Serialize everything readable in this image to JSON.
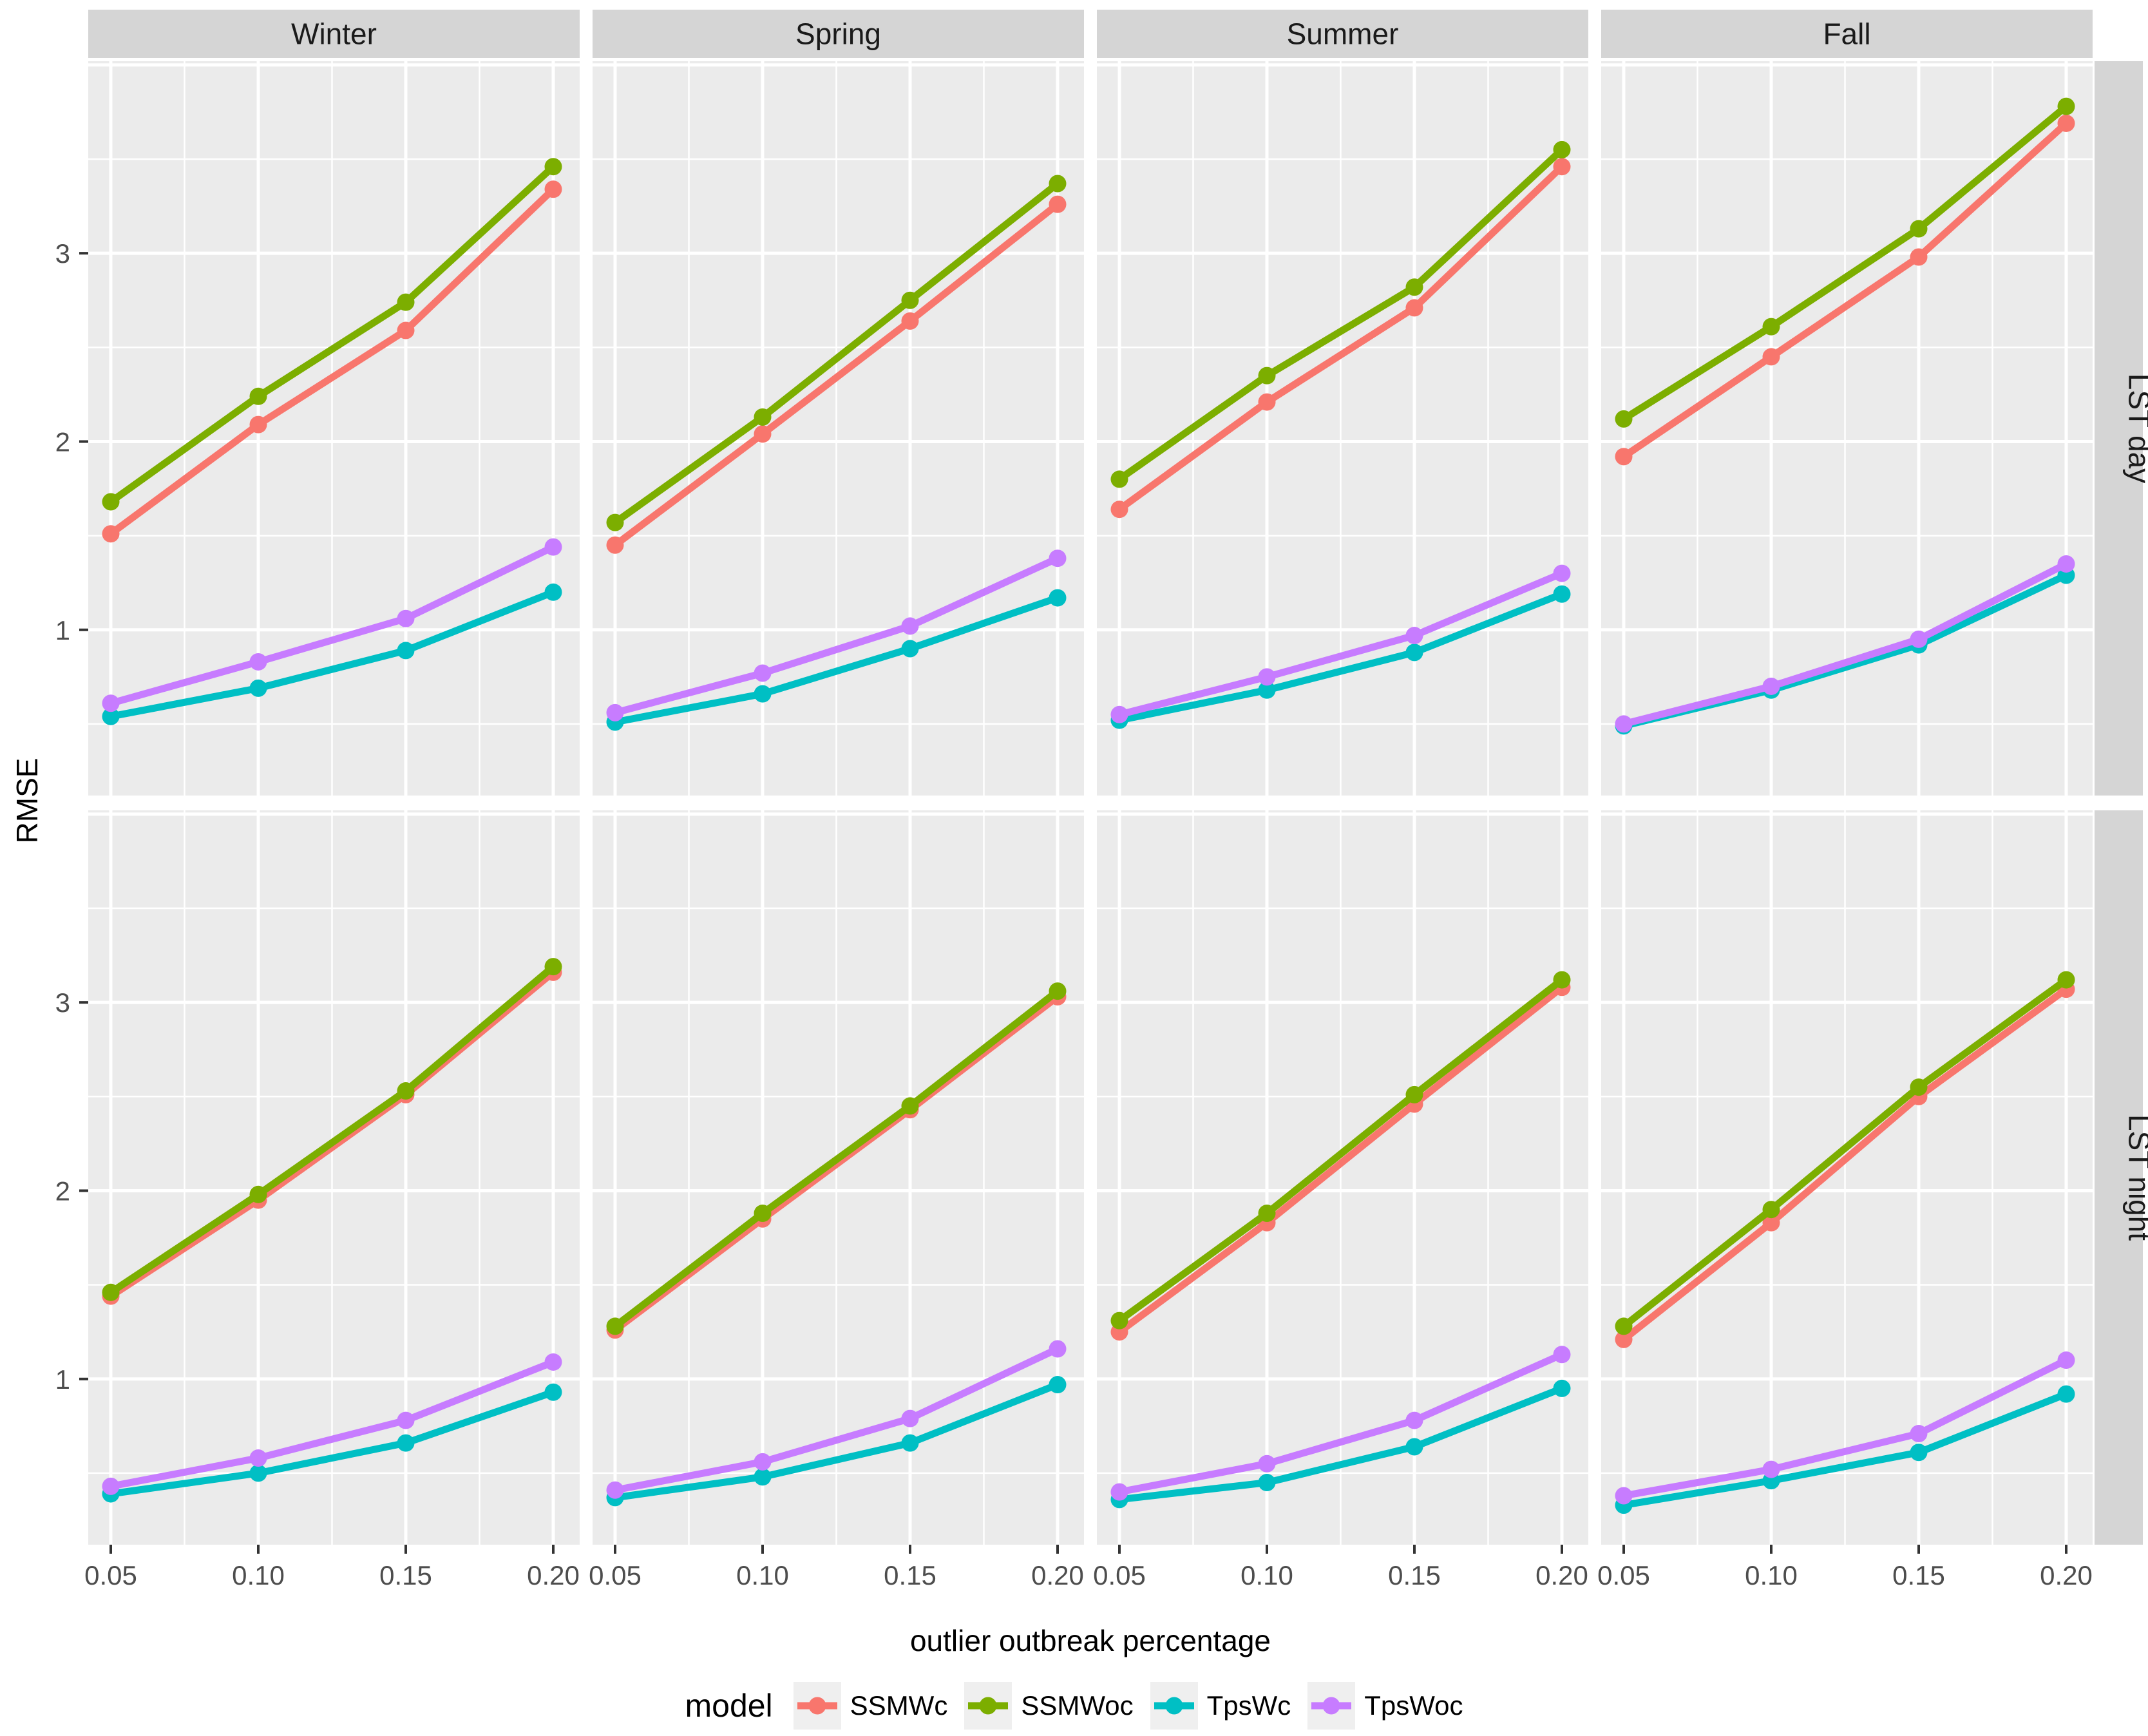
{
  "figure": {
    "y_axis_title": "RMSE",
    "x_axis_title": "outlier outbreak percentage",
    "legend_title": "model"
  },
  "chart_data": {
    "type": "line",
    "x": [
      0.05,
      0.1,
      0.15,
      0.2
    ],
    "x_tick_labels": [
      "0.05",
      "0.10",
      "0.15",
      "0.20"
    ],
    "y_ticks": [
      1,
      2,
      3
    ],
    "y_tick_labels": [
      "1",
      "2",
      "3"
    ],
    "ylim": [
      0.12,
      4.02
    ],
    "grid": "on",
    "legend_position": "bottom",
    "facet_cols": [
      "Winter",
      "Spring",
      "Summer",
      "Fall"
    ],
    "facet_rows": [
      "LST day",
      "LST night"
    ],
    "series_order": [
      "SSMWc",
      "SSMWoc",
      "TpsWc",
      "TpsWoc"
    ],
    "series_colors": {
      "SSMWc": "#F8766D",
      "SSMWoc": "#7CAE00",
      "TpsWc": "#00BFC4",
      "TpsWoc": "#C77CFF"
    },
    "panels": {
      "LST day": {
        "Winter": {
          "SSMWc": [
            1.51,
            2.09,
            2.59,
            3.34
          ],
          "SSMWoc": [
            1.68,
            2.24,
            2.74,
            3.46
          ],
          "TpsWc": [
            0.54,
            0.69,
            0.89,
            1.2
          ],
          "TpsWoc": [
            0.61,
            0.83,
            1.06,
            1.44
          ]
        },
        "Spring": {
          "SSMWc": [
            1.45,
            2.04,
            2.64,
            3.26
          ],
          "SSMWoc": [
            1.57,
            2.13,
            2.75,
            3.37
          ],
          "TpsWc": [
            0.51,
            0.66,
            0.9,
            1.17
          ],
          "TpsWoc": [
            0.56,
            0.77,
            1.02,
            1.38
          ]
        },
        "Summer": {
          "SSMWc": [
            1.64,
            2.21,
            2.71,
            3.46
          ],
          "SSMWoc": [
            1.8,
            2.35,
            2.82,
            3.55
          ],
          "TpsWc": [
            0.52,
            0.68,
            0.88,
            1.19
          ],
          "TpsWoc": [
            0.55,
            0.75,
            0.97,
            1.3
          ]
        },
        "Fall": {
          "SSMWc": [
            1.92,
            2.45,
            2.98,
            3.69
          ],
          "SSMWoc": [
            2.12,
            2.61,
            3.13,
            3.78
          ],
          "TpsWc": [
            0.49,
            0.68,
            0.92,
            1.29
          ],
          "TpsWoc": [
            0.5,
            0.7,
            0.95,
            1.35
          ]
        }
      },
      "LST night": {
        "Winter": {
          "SSMWc": [
            1.44,
            1.95,
            2.51,
            3.16
          ],
          "SSMWoc": [
            1.46,
            1.98,
            2.53,
            3.19
          ],
          "TpsWc": [
            0.39,
            0.5,
            0.66,
            0.93
          ],
          "TpsWoc": [
            0.43,
            0.58,
            0.78,
            1.09
          ]
        },
        "Spring": {
          "SSMWc": [
            1.26,
            1.85,
            2.43,
            3.03
          ],
          "SSMWoc": [
            1.28,
            1.88,
            2.45,
            3.06
          ],
          "TpsWc": [
            0.37,
            0.48,
            0.66,
            0.97
          ],
          "TpsWoc": [
            0.41,
            0.56,
            0.79,
            1.16
          ]
        },
        "Summer": {
          "SSMWc": [
            1.25,
            1.83,
            2.46,
            3.08
          ],
          "SSMWoc": [
            1.31,
            1.88,
            2.51,
            3.12
          ],
          "TpsWc": [
            0.36,
            0.45,
            0.64,
            0.95
          ],
          "TpsWoc": [
            0.4,
            0.55,
            0.78,
            1.13
          ]
        },
        "Fall": {
          "SSMWc": [
            1.21,
            1.83,
            2.5,
            3.07
          ],
          "SSMWoc": [
            1.28,
            1.9,
            2.55,
            3.12
          ],
          "TpsWc": [
            0.33,
            0.46,
            0.61,
            0.92
          ],
          "TpsWoc": [
            0.38,
            0.52,
            0.71,
            1.1
          ]
        }
      }
    }
  },
  "colors": {
    "panel_bg": "#EBEBEB",
    "strip_bg": "#D5D5D5",
    "gridline": "#FFFFFF",
    "tick_mark": "#333333",
    "tick_text": "#4D4D4D",
    "strip_text": "#1A1A1A",
    "legend_key_bg": "#EFEFEF"
  }
}
